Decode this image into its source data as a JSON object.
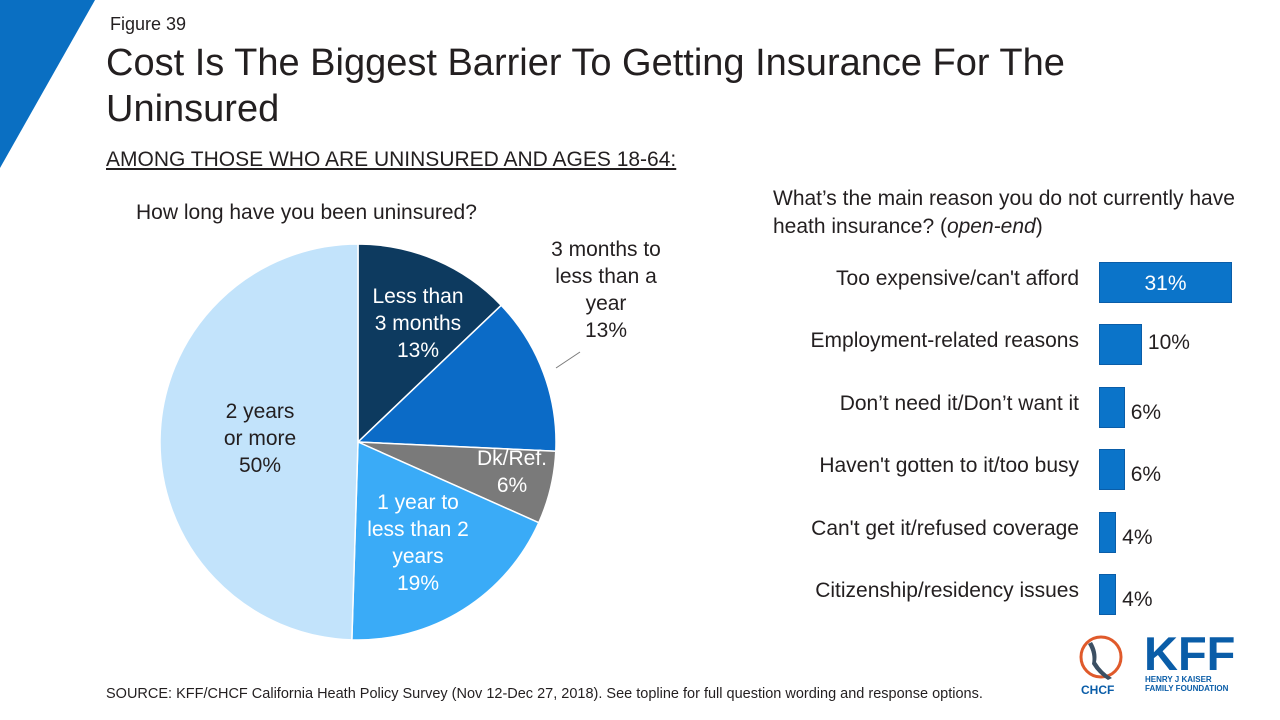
{
  "figure_label": "Figure 39",
  "title": "Cost Is The Biggest Barrier To Getting Insurance For The Uninsured",
  "subtitle": "AMONG THOSE WHO ARE UNINSURED AND AGES 18-64:",
  "colors": {
    "corner": "#0a6fc2",
    "bar": "#0b74c9"
  },
  "chart_data": [
    {
      "type": "pie",
      "title": "How long have you been uninsured?",
      "slices": [
        {
          "lines": [
            "Less than",
            "3 months",
            "13%"
          ],
          "value": 13,
          "color": "#0d3a5f",
          "text_color": "#ffffff"
        },
        {
          "lines": [
            "3 months to",
            "less than a",
            "year",
            "13%"
          ],
          "value": 13,
          "color": "#0b6bc7",
          "text_color": "#231f20"
        },
        {
          "lines": [
            "Dk/Ref.",
            "6%"
          ],
          "value": 6,
          "color": "#7a7a7a",
          "text_color": "#ffffff"
        },
        {
          "lines": [
            "1 year to",
            "less than 2",
            "years",
            "19%"
          ],
          "value": 19,
          "color": "#3aabf7",
          "text_color": "#ffffff"
        },
        {
          "lines": [
            "2 years",
            "or more",
            "50%"
          ],
          "value": 50,
          "color": "#c2e3fb",
          "text_color": "#231f20"
        }
      ]
    },
    {
      "type": "bar",
      "title_main": "What’s the main reason you do not currently have heath insurance? (",
      "title_italic": "open-end",
      "title_end": ")",
      "categories": [
        "Too expensive/can't afford",
        "Employment-related reasons",
        "Don’t need it/Don’t want it",
        "Haven't gotten to it/too busy",
        "Can't get it/refused coverage",
        "Citizenship/residency issues"
      ],
      "values": [
        31,
        10,
        6,
        6,
        4,
        4
      ],
      "value_labels": [
        "31%",
        "10%",
        "6%",
        "6%",
        "4%",
        "4%"
      ]
    }
  ],
  "source": "SOURCE: KFF/CHCF California Heath Policy Survey (Nov 12-Dec 27, 2018). See topline for full question wording and response options.",
  "logos": {
    "chcf": "CHCF",
    "kff": "KFF",
    "kff_sub_1": "HENRY J KAISER",
    "kff_sub_2": "FAMILY FOUNDATION"
  }
}
